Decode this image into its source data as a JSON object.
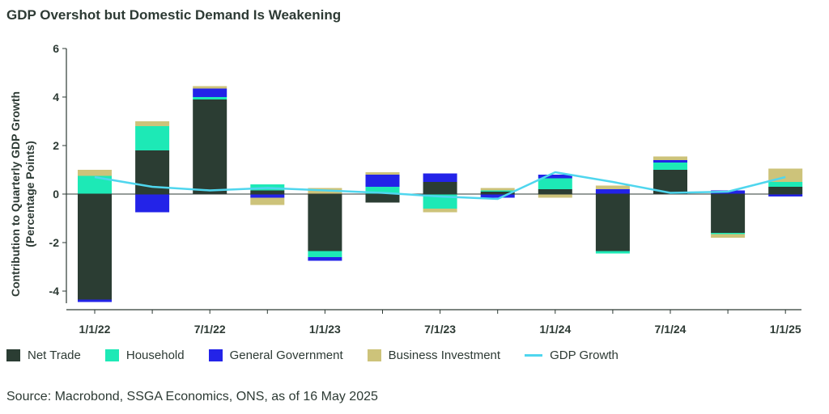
{
  "chart_data": {
    "type": "bar",
    "stacked": true,
    "title": "GDP Overshot but Domestic Demand Is Weakening",
    "ylabel_line1": "Contribution to Quarterly GDP Growth",
    "ylabel_line2": "(Percentage Points)",
    "xlabel": "",
    "ylim": [
      -4.5,
      6
    ],
    "yticks": [
      -4,
      -2,
      0,
      2,
      4,
      6
    ],
    "ytick_labels": [
      "-4",
      "-2",
      "0",
      "2",
      "4",
      "6"
    ],
    "categories": [
      "1/1/22",
      "4/1/22",
      "7/1/22",
      "10/1/22",
      "1/1/23",
      "4/1/23",
      "7/1/23",
      "10/1/23",
      "1/1/24",
      "4/1/24",
      "7/1/24",
      "10/1/24",
      "1/1/25"
    ],
    "x_tick_labels": [
      "1/1/22",
      "",
      "7/1/22",
      "",
      "1/1/23",
      "",
      "7/1/23",
      "",
      "1/1/24",
      "",
      "7/1/24",
      "",
      "1/1/25"
    ],
    "series": [
      {
        "name": "Net Trade",
        "color": "#2b3d33",
        "values": [
          -4.35,
          1.8,
          3.9,
          0.15,
          -2.35,
          -0.35,
          0.5,
          0.1,
          0.2,
          -2.35,
          1.0,
          -1.6,
          0.3
        ]
      },
      {
        "name": "Household",
        "color": "#1de9b6",
        "values": [
          0.75,
          1.0,
          0.1,
          0.25,
          -0.25,
          0.3,
          -0.6,
          0.05,
          0.45,
          -0.1,
          0.3,
          -0.05,
          0.2
        ]
      },
      {
        "name": "General Government",
        "color": "#2323e8",
        "values": [
          -0.1,
          -0.75,
          0.35,
          -0.15,
          -0.15,
          0.5,
          0.35,
          -0.15,
          0.15,
          0.2,
          0.1,
          0.15,
          -0.1
        ]
      },
      {
        "name": "Business Investment",
        "color": "#cdc37a",
        "values": [
          0.25,
          0.2,
          0.1,
          -0.3,
          0.25,
          0.1,
          -0.15,
          0.1,
          -0.15,
          0.15,
          0.15,
          -0.15,
          0.55
        ]
      }
    ],
    "line_series": {
      "name": "GDP Growth",
      "color": "#4fd6ee",
      "values": [
        0.7,
        0.3,
        0.15,
        0.25,
        0.15,
        0.05,
        -0.1,
        -0.2,
        0.9,
        0.5,
        0.05,
        0.1,
        0.7
      ]
    },
    "legend_position": "bottom",
    "grid": false
  },
  "source": "Source: Macrobond, SSGA Economics, ONS, as of 16 May 2025"
}
